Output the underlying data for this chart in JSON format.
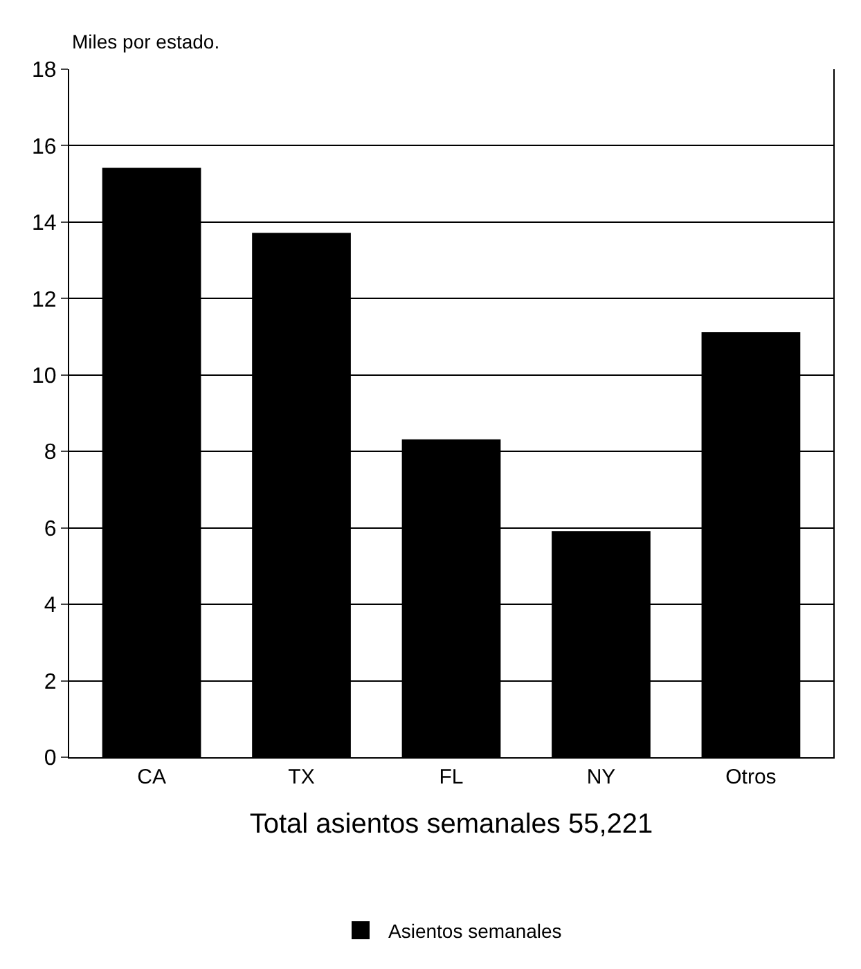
{
  "chart_data": {
    "type": "bar",
    "ylabel": "Miles por estado.",
    "xlabel": "Total asientos semanales 55,221",
    "categories": [
      "CA",
      "TX",
      "FL",
      "NY",
      "Otros"
    ],
    "series": [
      {
        "name": "Asientos semanales",
        "color": "#000000",
        "values": [
          15.4,
          13.7,
          8.3,
          5.9,
          11.1
        ]
      }
    ],
    "ylim": [
      0,
      18
    ],
    "yticks": [
      0,
      2,
      4,
      6,
      8,
      10,
      12,
      14,
      16,
      18
    ],
    "grid": "y",
    "legend": "bottom"
  }
}
